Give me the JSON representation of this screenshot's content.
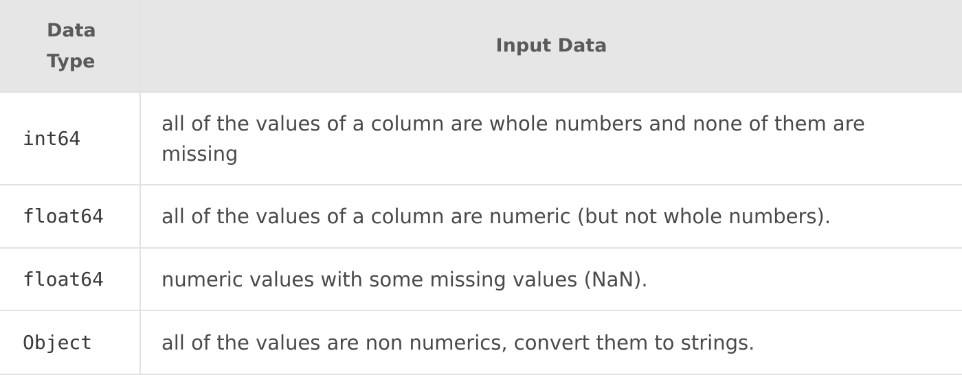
{
  "table": {
    "headers": {
      "data_type_line1": "Data",
      "data_type_line2": "Type",
      "input_data": "Input Data"
    },
    "rows": [
      {
        "type": "int64",
        "description": "all of the values of a column are whole numbers and none of them are missing"
      },
      {
        "type": "float64",
        "description": "all of the values of a column are numeric (but not whole numbers)."
      },
      {
        "type": "float64",
        "description": "numeric values with some missing values (NaN)."
      },
      {
        "type": "Object",
        "description": "all of the values are non numerics, convert them to strings."
      }
    ]
  }
}
